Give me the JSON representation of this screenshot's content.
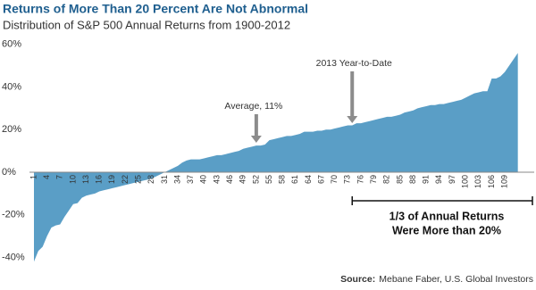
{
  "chart_data": {
    "type": "area",
    "title": "Returns of More Than 20 Percent Are Not Abnormal",
    "subtitle": "Distribution of S&P 500 Annual Returns from 1900-2012",
    "categories": [
      1,
      null,
      null,
      4,
      null,
      null,
      7,
      null,
      null,
      10,
      null,
      null,
      13,
      null,
      null,
      16,
      null,
      null,
      19,
      null,
      null,
      22,
      null,
      null,
      25,
      null,
      null,
      28,
      null,
      null,
      31,
      null,
      null,
      34,
      null,
      null,
      37,
      null,
      null,
      40,
      null,
      null,
      43,
      null,
      null,
      46,
      null,
      null,
      49,
      null,
      null,
      52,
      null,
      null,
      55,
      null,
      null,
      58,
      null,
      null,
      61,
      null,
      null,
      64,
      null,
      null,
      67,
      null,
      null,
      70,
      null,
      null,
      73,
      null,
      null,
      76,
      null,
      null,
      79,
      null,
      null,
      82,
      null,
      null,
      85,
      null,
      null,
      88,
      null,
      null,
      91,
      null,
      null,
      94,
      null,
      null,
      97,
      null,
      null,
      100,
      null,
      null,
      103,
      null,
      null,
      106,
      null,
      null,
      109,
      null,
      null,
      null
    ],
    "values": [
      -42,
      -37,
      -35,
      -30,
      -26,
      -25,
      -24.5,
      -21,
      -18,
      -15,
      -14.5,
      -12,
      -11,
      -10.5,
      -10,
      -9,
      -8.5,
      -8,
      -7.5,
      -7,
      -6.5,
      -6,
      -5.5,
      -5,
      -4.5,
      -4,
      -3.5,
      -3,
      -2,
      -1,
      0,
      1,
      2,
      3,
      4.5,
      5.5,
      6,
      6,
      6,
      6.5,
      7,
      7.5,
      8,
      8,
      8.5,
      9,
      9.5,
      10,
      11,
      11.5,
      12,
      12.5,
      12.5,
      13,
      15,
      15.5,
      16,
      16.5,
      17,
      17,
      17.5,
      18,
      19,
      19,
      19,
      19.5,
      19.5,
      20,
      20,
      20.5,
      21,
      21.5,
      22,
      22,
      23,
      23,
      23.5,
      24,
      24.5,
      25,
      25.5,
      26,
      26,
      26.5,
      27,
      28,
      28.5,
      29,
      30,
      30.5,
      31,
      31.5,
      31.5,
      32,
      32,
      32.5,
      33,
      33.5,
      34,
      35,
      36,
      37,
      37.5,
      38,
      38,
      44,
      44,
      45,
      47,
      50,
      53,
      56
    ],
    "color": "#5a9ec6",
    "ylim": [
      -44,
      62
    ],
    "yticks": [
      {
        "value": -40,
        "label": "-40%"
      },
      {
        "value": -20,
        "label": "-20%"
      },
      {
        "value": 0,
        "label": "0%"
      },
      {
        "value": 20,
        "label": "20%"
      },
      {
        "value": 40,
        "label": "40%"
      },
      {
        "value": 60,
        "label": "60%"
      }
    ],
    "annotations": [
      "Average, 11%",
      "2013 Year-to-Date",
      "1/3 of Annual Returns",
      "Were More than 20%"
    ],
    "source_label": "Source:",
    "source": "Mebane Faber, U.S. Global Investors"
  }
}
